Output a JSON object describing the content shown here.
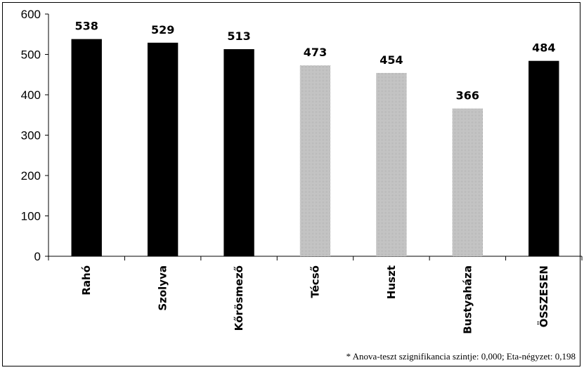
{
  "chart_data": {
    "type": "bar",
    "categories": [
      "Rahó",
      "Szolyva",
      "Kőrösmező",
      "Técső",
      "Huszt",
      "Bustyaháza",
      "ÖSSZESEN"
    ],
    "values": [
      538,
      529,
      513,
      473,
      454,
      366,
      484
    ],
    "fills": [
      "solid",
      "solid",
      "solid",
      "dotted",
      "dotted",
      "dotted",
      "solid"
    ],
    "ylim": [
      0,
      600
    ],
    "yticks": [
      "0",
      "100",
      "200",
      "300",
      "400",
      "500",
      "600"
    ],
    "grid": false,
    "colors": {
      "solid": "#000000",
      "dotted": "#7a7a7a"
    }
  },
  "footnote": "* Anova-teszt szignifikancia szintje: 0,000; Eta-négyzet: 0,198"
}
